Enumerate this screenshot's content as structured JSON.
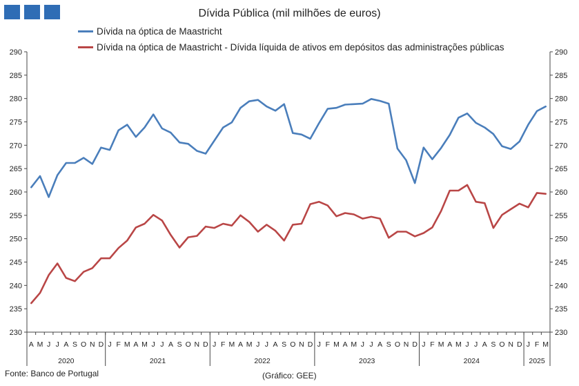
{
  "chart_data": {
    "type": "line",
    "title": "Dívida Pública (mil milhões de euros)",
    "source": "Fonte: Banco de Portugal",
    "credit": "(Gráfico: GEE)",
    "ylim": [
      230,
      290
    ],
    "yticks": [
      230,
      235,
      240,
      245,
      250,
      255,
      260,
      265,
      270,
      275,
      280,
      285,
      290
    ],
    "grid": false,
    "legend_position": "top",
    "month_labels": [
      "A",
      "M",
      "J",
      "J",
      "A",
      "S",
      "O",
      "N",
      "D",
      "J",
      "F",
      "M",
      "A",
      "M",
      "J",
      "J",
      "A",
      "S",
      "O",
      "N",
      "D",
      "J",
      "F",
      "M",
      "A",
      "M",
      "J",
      "J",
      "A",
      "S",
      "O",
      "N",
      "D",
      "J",
      "F",
      "M",
      "A",
      "M",
      "J",
      "J",
      "A",
      "S",
      "O",
      "N",
      "D",
      "J",
      "F",
      "M",
      "A",
      "M",
      "J",
      "J",
      "A",
      "S",
      "O",
      "N",
      "D",
      "J",
      "F",
      "M"
    ],
    "years": [
      {
        "label": "2020",
        "months": 9
      },
      {
        "label": "2021",
        "months": 12
      },
      {
        "label": "2022",
        "months": 12
      },
      {
        "label": "2023",
        "months": 12
      },
      {
        "label": "2024",
        "months": 12
      },
      {
        "label": "2025",
        "months": 3
      }
    ],
    "series": [
      {
        "name": "Dívida na óptica de Maastricht",
        "color": "#4a7ebb",
        "values": [
          261.0,
          263.4,
          258.9,
          263.6,
          266.2,
          266.2,
          267.3,
          266.0,
          269.5,
          269.0,
          273.2,
          274.4,
          271.8,
          273.8,
          276.6,
          273.6,
          272.7,
          270.6,
          270.3,
          268.8,
          268.2,
          271.0,
          273.8,
          274.9,
          278.0,
          279.4,
          279.7,
          278.3,
          277.4,
          278.8,
          272.6,
          272.3,
          271.4,
          274.7,
          277.8,
          278.0,
          278.7,
          278.8,
          278.9,
          279.9,
          279.5,
          278.9,
          269.3,
          266.8,
          261.9,
          269.5,
          267.0,
          269.4,
          272.2,
          275.9,
          276.8,
          274.8,
          273.8,
          272.4,
          269.8,
          269.2,
          270.8,
          274.4,
          277.3,
          278.3
        ]
      },
      {
        "name": "Dívida na óptica de Maastricht - Dívida líquida de ativos em depósitos das administrações públicas",
        "color": "#b94646",
        "values": [
          236.2,
          238.4,
          242.2,
          244.7,
          241.6,
          240.9,
          242.9,
          243.7,
          245.8,
          245.8,
          248.0,
          249.6,
          252.4,
          253.2,
          255.1,
          253.9,
          250.8,
          248.1,
          250.3,
          250.6,
          252.6,
          252.3,
          253.2,
          252.8,
          255.0,
          253.6,
          251.5,
          253.0,
          251.7,
          249.6,
          253.0,
          253.2,
          257.4,
          257.9,
          257.1,
          254.8,
          255.5,
          255.2,
          254.3,
          254.7,
          254.3,
          250.2,
          251.5,
          251.5,
          250.5,
          251.2,
          252.4,
          255.9,
          260.3,
          260.3,
          261.5,
          257.9,
          257.6,
          252.3,
          255.1,
          256.3,
          257.5,
          256.7,
          259.8,
          259.6
        ]
      }
    ]
  }
}
